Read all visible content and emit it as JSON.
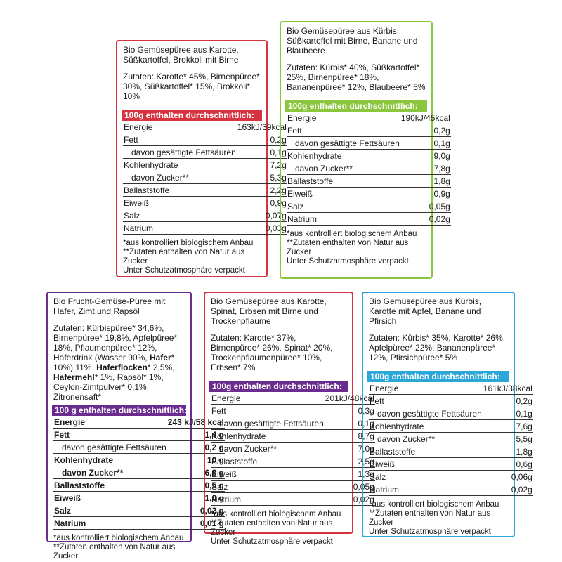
{
  "colors": {
    "red": "#d6323f",
    "green": "#8cc63f",
    "purple": "#6b2c8f",
    "blue": "#2aa7d8"
  },
  "cards": [
    {
      "title": "Bio Gemüsepüree aus Karotte, Süßkartoffel, Brokkoli mit Birne",
      "ingredients": "Zutaten: Karotte* 45%, Birnenpüree* 30%, Süßkartoffel* 15%, Brokkoli* 10%",
      "header": "100g enthalten durchschnittlich:",
      "rows": {
        "energie": {
          "label": "Energie",
          "value": "163kJ/39kcal"
        },
        "fett": {
          "label": "Fett",
          "value": "0,2g"
        },
        "fettsaeuren": {
          "label": "davon gesättigte Fettsäuren",
          "value": "0,1g"
        },
        "kohlenhydrate": {
          "label": "Kohlenhydrate",
          "value": "7,2g"
        },
        "zucker": {
          "label": "davon Zucker**",
          "value": "5,3g"
        },
        "ballaststoffe": {
          "label": "Ballaststoffe",
          "value": "2,2g"
        },
        "eiweiss": {
          "label": "Eiweiß",
          "value": "0,9g"
        },
        "salz": {
          "label": "Salz",
          "value": "0,07g"
        },
        "natrium": {
          "label": "Natrium",
          "value": "0,03g"
        }
      },
      "footnote1": "*aus kontrolliert biologischem Anbau",
      "footnote2": "**Zutaten enthalten von Natur aus Zucker",
      "footnote3": "Unter Schutzatmosphäre verpackt"
    },
    {
      "title": "Bio Gemüsepüree aus Kürbis, Süßkartoffel mit Birne, Banane und Blaubeere",
      "ingredients": "Zutaten: Kürbis* 40%, Süßkartoffel* 25%, Birnenpüree* 18%, Bananenpüree* 12%, Blaubeere* 5%",
      "header": "100g enthalten durchschnittlich:",
      "rows": {
        "energie": {
          "label": "Energie",
          "value": "190kJ/45kcal"
        },
        "fett": {
          "label": "Fett",
          "value": "0,2g"
        },
        "fettsaeuren": {
          "label": "davon gesättigte Fettsäuren",
          "value": "0,1g"
        },
        "kohlenhydrate": {
          "label": "Kohlenhydrate",
          "value": "9,0g"
        },
        "zucker": {
          "label": "davon Zucker**",
          "value": "7,8g"
        },
        "ballaststoffe": {
          "label": "Ballaststoffe",
          "value": "1,8g"
        },
        "eiweiss": {
          "label": "Eiweiß",
          "value": "0,9g"
        },
        "salz": {
          "label": "Salz",
          "value": "0,05g"
        },
        "natrium": {
          "label": "Natrium",
          "value": "0,02g"
        }
      },
      "footnote1": "*aus kontrolliert biologischem Anbau",
      "footnote2": "**Zutaten enthalten von Natur aus Zucker",
      "footnote3": "Unter Schutzatmosphäre verpackt"
    },
    {
      "title": "Bio Frucht-Gemüse-Püree mit Hafer, Zimt und Rapsöl",
      "ingredients_pre": "Zutaten: Kürbispüree* 34,6%, Birnenpüree* 19,8%, Apfelpüree* 18%, Pflaumenpüree* 12%, Haferdrink (Wasser 90%, ",
      "ingredients_b1": "Hafer",
      "ingredients_mid1": "* 10%) 11%, ",
      "ingredients_b2": "Haferflocken",
      "ingredients_mid2": "* 2,5%, ",
      "ingredients_b3": "Hafermehl",
      "ingredients_post": "* 1%, Rapsöl* 1%, Ceylon-Zimtpulver* 0,1%, Zitronensaft*",
      "header": "100 g enthalten durchschnittlich:",
      "rows": {
        "energie": {
          "label": "Energie",
          "value": "243 kJ/58 kcal"
        },
        "fett": {
          "label": "Fett",
          "value": "1,4 g"
        },
        "fettsaeuren": {
          "label": "davon gesättigte Fettsäuren",
          "value": "0,2 g"
        },
        "kohlenhydrate": {
          "label": "Kohlenhydrate",
          "value": "10 g"
        },
        "zucker": {
          "label": "davon Zucker**",
          "value": "6,8 g"
        },
        "ballaststoffe": {
          "label": "Ballaststoffe",
          "value": "0,5 g"
        },
        "eiweiss": {
          "label": "Eiweiß",
          "value": "1,0 g"
        },
        "salz": {
          "label": "Salz",
          "value": "0,02 g"
        },
        "natrium": {
          "label": "Natrium",
          "value": "0,01 g"
        }
      },
      "footnote1": "*aus kontrolliert biologischem Anbau",
      "footnote2": "**Zutaten enthalten von Natur aus Zucker"
    },
    {
      "title": "Bio Gemüsepüree aus Karotte, Spinat, Erbsen mit Birne und Trockenpflaume",
      "ingredients": "Zutaten: Karotte* 37%, Birnenpüree* 26%, Spinat* 20%, Trockenpflaumenpüree* 10%, Erbsen* 7%",
      "header": "100g enthalten durchschnittlich:",
      "rows": {
        "energie": {
          "label": "Energie",
          "value": "201kJ/48kcal"
        },
        "fett": {
          "label": "Fett",
          "value": "0,3g"
        },
        "fettsaeuren": {
          "label": "davon gesättigte Fettsäuren",
          "value": "0,1g"
        },
        "kohlenhydrate": {
          "label": "Kohlenhydrate",
          "value": "8,7g"
        },
        "zucker": {
          "label": "davon Zucker**",
          "value": "7,0g"
        },
        "ballaststoffe": {
          "label": "Ballaststoffe",
          "value": "2,5g"
        },
        "eiweiss": {
          "label": "Eiweiß",
          "value": "1,3g"
        },
        "salz": {
          "label": "Salz",
          "value": "0,05g"
        },
        "natrium": {
          "label": "Natrium",
          "value": "0,02g"
        }
      },
      "footnote1": "*aus kontrolliert biologischem Anbau",
      "footnote2": "**Zutaten enthalten von Natur aus Zucker",
      "footnote3": "Unter Schutzatmosphäre verpackt"
    },
    {
      "title": "Bio Gemüsepüree aus Kürbis, Karotte mit Apfel, Banane und Pfirsich",
      "ingredients": "Zutaten: Kürbis* 35%, Karotte* 26%, Apfelpüree* 22%, Bananenpüree* 12%, Pfirsichpüree* 5%",
      "header": "100g enthalten durchschnittlich:",
      "rows": {
        "energie": {
          "label": "Energie",
          "value": "161kJ/38kcal"
        },
        "fett": {
          "label": "Fett",
          "value": "0,2g"
        },
        "fettsaeuren": {
          "label": "davon gesättigte Fettsäuren",
          "value": "0,1g"
        },
        "kohlenhydrate": {
          "label": "Kohlenhydrate",
          "value": "7,6g"
        },
        "zucker": {
          "label": "davon Zucker**",
          "value": "5,5g"
        },
        "ballaststoffe": {
          "label": "Ballaststoffe",
          "value": "1,8g"
        },
        "eiweiss": {
          "label": "Eiweiß",
          "value": "0,6g"
        },
        "salz": {
          "label": "Salz",
          "value": "0,06g"
        },
        "natrium": {
          "label": "Natrium",
          "value": "0,02g"
        }
      },
      "footnote1": "*aus kontrolliert biologischem Anbau",
      "footnote2": "**Zutaten enthalten von Natur aus Zucker",
      "footnote3": "Unter Schutzatmosphäre verpackt"
    }
  ]
}
